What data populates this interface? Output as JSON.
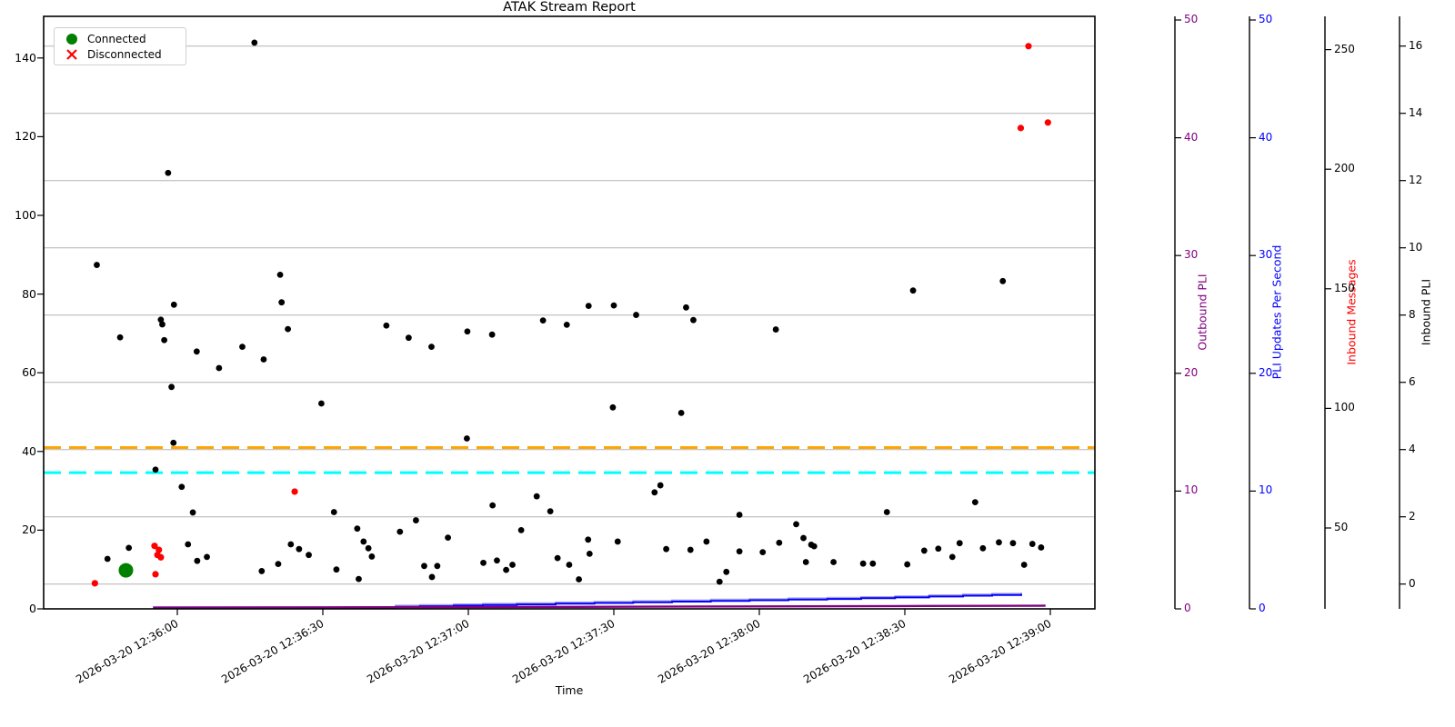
{
  "title": "ATAK Stream Report",
  "legend": {
    "items": [
      {
        "label": "Connected",
        "marker": "circle",
        "color": "#008000"
      },
      {
        "label": "Disconnected",
        "marker": "x",
        "color": "#FF0000"
      }
    ]
  },
  "chart_data": {
    "type": "scatter",
    "title": "ATAK Stream Report",
    "xlabel": "Time",
    "time_note": "x values are seconds after 2026-03-20 12:36:00",
    "x_ticks": {
      "seconds": [
        0,
        30,
        60,
        90,
        120,
        150,
        180
      ],
      "labels": [
        "2026-03-20 12:36:00",
        "2026-03-20 12:36:30",
        "2026-03-20 12:37:00",
        "2026-03-20 12:37:30",
        "2026-03-20 12:38:00",
        "2026-03-20 12:38:30",
        "2026-03-20 12:39:00"
      ]
    },
    "left_axis": {
      "ticks": [
        0,
        20,
        40,
        60,
        80,
        100,
        120,
        140
      ],
      "ylim": [
        0,
        150.6
      ]
    },
    "right_axes": [
      {
        "name": "Outbound PLI",
        "label_color": "#800080",
        "tick_color": "#800080",
        "ticks": [
          0,
          10,
          20,
          30,
          40,
          50
        ]
      },
      {
        "name": "PLI Updates Per Second",
        "label_color": "#0000FF",
        "tick_color": "#0000FF",
        "ticks": [
          0,
          10,
          20,
          30,
          40,
          50
        ]
      },
      {
        "name": "Inbound Messages",
        "label_color": "#FF0000",
        "tick_color": "#000000",
        "ticks": [
          50,
          100,
          150,
          200,
          250
        ]
      },
      {
        "name": "Inbound PLI",
        "label_color": "#000000",
        "tick_color": "#000000",
        "ticks": [
          0,
          2,
          4,
          6,
          8,
          10,
          12,
          14,
          16
        ]
      }
    ],
    "grid": {
      "on": true,
      "follows": "Inbound PLI ticks",
      "color": "#b3b3b3"
    },
    "hlines": [
      {
        "y": 41.0,
        "color": "#FFA500",
        "style": "dashed"
      },
      {
        "y": 34.6,
        "color": "#00FFFF",
        "style": "dashed"
      }
    ],
    "series": {
      "stream_samples": {
        "marker": "dot",
        "color": "#000000",
        "points": [
          [
            -16.6,
            87.4
          ],
          [
            -14.4,
            12.7
          ],
          [
            -11.8,
            69.0
          ],
          [
            -10.0,
            15.5
          ],
          [
            -4.5,
            35.4
          ],
          [
            -3.4,
            73.5
          ],
          [
            -3.1,
            72.3
          ],
          [
            -2.7,
            68.3
          ],
          [
            -1.9,
            110.8
          ],
          [
            -1.2,
            56.4
          ],
          [
            -0.8,
            42.2
          ],
          [
            -0.7,
            77.3
          ],
          [
            0.9,
            31.0
          ],
          [
            2.2,
            16.4
          ],
          [
            3.2,
            24.5
          ],
          [
            4.0,
            65.4
          ],
          [
            4.1,
            12.2
          ],
          [
            6.1,
            13.2
          ],
          [
            8.6,
            61.2
          ],
          [
            13.4,
            66.6
          ],
          [
            15.9,
            143.9
          ],
          [
            17.4,
            9.6
          ],
          [
            17.8,
            63.4
          ],
          [
            20.8,
            11.4
          ],
          [
            21.2,
            84.9
          ],
          [
            21.5,
            77.9
          ],
          [
            22.8,
            71.1
          ],
          [
            23.4,
            16.4
          ],
          [
            25.1,
            15.2
          ],
          [
            27.1,
            13.7
          ],
          [
            29.7,
            52.2
          ],
          [
            32.3,
            24.6
          ],
          [
            32.8,
            10.0
          ],
          [
            37.1,
            20.4
          ],
          [
            37.4,
            7.6
          ],
          [
            38.4,
            17.1
          ],
          [
            39.4,
            15.4
          ],
          [
            40.1,
            13.3
          ],
          [
            43.1,
            72.0
          ],
          [
            45.9,
            19.6
          ],
          [
            47.7,
            68.9
          ],
          [
            49.2,
            22.5
          ],
          [
            50.9,
            10.9
          ],
          [
            52.4,
            66.6
          ],
          [
            52.5,
            8.1
          ],
          [
            53.6,
            10.9
          ],
          [
            55.8,
            18.1
          ],
          [
            59.7,
            43.3
          ],
          [
            59.8,
            70.5
          ],
          [
            63.1,
            11.7
          ],
          [
            64.9,
            69.7
          ],
          [
            65.0,
            26.3
          ],
          [
            65.9,
            12.3
          ],
          [
            67.8,
            9.9
          ],
          [
            69.1,
            11.2
          ],
          [
            70.9,
            20.0
          ],
          [
            74.1,
            28.6
          ],
          [
            75.4,
            73.3
          ],
          [
            76.9,
            24.8
          ],
          [
            78.4,
            12.9
          ],
          [
            80.3,
            72.2
          ],
          [
            80.8,
            11.2
          ],
          [
            82.8,
            7.5
          ],
          [
            84.7,
            17.6
          ],
          [
            84.8,
            77.0
          ],
          [
            85.0,
            14.0
          ],
          [
            89.8,
            51.2
          ],
          [
            90.0,
            77.1
          ],
          [
            90.8,
            17.1
          ],
          [
            94.6,
            74.7
          ],
          [
            98.4,
            29.6
          ],
          [
            99.6,
            31.4
          ],
          [
            100.8,
            15.2
          ],
          [
            103.9,
            49.8
          ],
          [
            104.9,
            76.6
          ],
          [
            105.8,
            15.0
          ],
          [
            106.4,
            73.4
          ],
          [
            109.1,
            17.1
          ],
          [
            111.8,
            6.9
          ],
          [
            113.2,
            9.4
          ],
          [
            115.9,
            23.9
          ],
          [
            115.9,
            14.6
          ],
          [
            120.7,
            14.4
          ],
          [
            123.4,
            71.0
          ],
          [
            124.1,
            16.8
          ],
          [
            127.6,
            21.5
          ],
          [
            129.1,
            18.0
          ],
          [
            129.6,
            11.9
          ],
          [
            130.7,
            16.3
          ],
          [
            131.3,
            15.9
          ],
          [
            135.3,
            11.9
          ],
          [
            141.4,
            11.5
          ],
          [
            143.4,
            11.5
          ],
          [
            146.3,
            24.6
          ],
          [
            150.5,
            11.3
          ],
          [
            151.7,
            80.9
          ],
          [
            154.0,
            14.8
          ],
          [
            156.9,
            15.3
          ],
          [
            159.8,
            13.2
          ],
          [
            161.3,
            16.7
          ],
          [
            164.5,
            27.1
          ],
          [
            166.1,
            15.4
          ],
          [
            169.4,
            16.9
          ],
          [
            170.2,
            83.3
          ],
          [
            172.3,
            16.7
          ],
          [
            174.6,
            11.2
          ],
          [
            176.3,
            16.5
          ],
          [
            178.1,
            15.6
          ]
        ]
      },
      "disconnected": {
        "marker": "dot",
        "color": "#FF0000",
        "points": [
          [
            -17.0,
            6.5
          ],
          [
            -4.7,
            16.0
          ],
          [
            -4.5,
            8.8
          ],
          [
            -4.1,
            13.7
          ],
          [
            -3.8,
            15.0
          ],
          [
            -3.4,
            13.1
          ],
          [
            24.2,
            29.8
          ],
          [
            173.9,
            122.2
          ],
          [
            175.5,
            143.0
          ],
          [
            179.5,
            123.6
          ]
        ]
      },
      "connected": {
        "marker": "dot-large",
        "color": "#008000",
        "points": [
          [
            -10.6,
            9.8
          ]
        ]
      },
      "pli_updates_per_second_line": {
        "color": "#0000FF",
        "axis": "PLI Updates Per Second",
        "style": "step",
        "points": [
          [
            -5,
            0.05
          ],
          [
            44,
            0.05
          ],
          [
            45,
            0.17
          ],
          [
            50,
            0.22
          ],
          [
            57,
            0.28
          ],
          [
            63,
            0.33
          ],
          [
            70,
            0.38
          ],
          [
            78,
            0.44
          ],
          [
            86,
            0.5
          ],
          [
            94,
            0.56
          ],
          [
            102,
            0.62
          ],
          [
            110,
            0.68
          ],
          [
            118,
            0.73
          ],
          [
            126,
            0.79
          ],
          [
            134,
            0.84
          ],
          [
            141,
            0.9
          ],
          [
            148,
            0.97
          ],
          [
            155,
            1.05
          ],
          [
            162,
            1.12
          ],
          [
            168,
            1.18
          ],
          [
            174,
            1.27
          ]
        ]
      },
      "companion_line": {
        "color": "#A9A3E0",
        "axis": "PLI Updates Per Second",
        "style": "step",
        "offset_above_blue": 0.12
      },
      "outbound_pli_line": {
        "color": "#800080",
        "axis": "Outbound PLI",
        "style": "line",
        "points": [
          [
            -5,
            0.1
          ],
          [
            30,
            0.12
          ],
          [
            60,
            0.15
          ],
          [
            90,
            0.18
          ],
          [
            120,
            0.21
          ],
          [
            150,
            0.24
          ],
          [
            179,
            0.27
          ]
        ]
      }
    }
  }
}
